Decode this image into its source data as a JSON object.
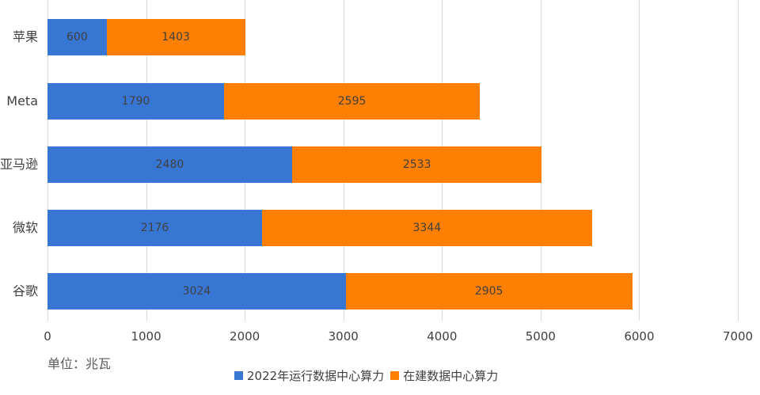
{
  "chart_data": {
    "type": "bar",
    "orientation": "horizontal",
    "stacked": true,
    "title": "",
    "xlabel": "",
    "ylabel": "",
    "unit_label": "单位：兆瓦",
    "categories": [
      "苹果",
      "Meta",
      "亚马逊",
      "微软",
      "谷歌"
    ],
    "series": [
      {
        "name": "2022年运行数据中心算力",
        "color": "#3876d4",
        "values": [
          600,
          1790,
          2480,
          2176,
          3024
        ]
      },
      {
        "name": "在建数据中心算力",
        "color": "#ff7f00",
        "values": [
          1403,
          2595,
          2533,
          3344,
          2905
        ]
      }
    ],
    "xlim": [
      0,
      7000
    ],
    "xticks": [
      0,
      1000,
      2000,
      3000,
      4000,
      5000,
      6000,
      7000
    ],
    "grid": true,
    "legend_position": "bottom",
    "data_labels": true
  }
}
